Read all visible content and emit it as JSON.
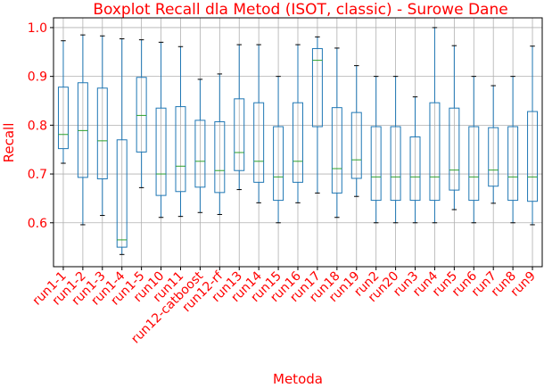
{
  "chart_data": {
    "type": "boxplot",
    "title": "Boxplot Recall dla Metod (ISOT, classic) - Surowe Dane",
    "xlabel": "Metoda",
    "ylabel": "Recall",
    "ylim": [
      0.51,
      1.02
    ],
    "yticks": [
      "0.6",
      "0.7",
      "0.8",
      "0.9",
      "1.0"
    ],
    "grid": true,
    "colors": {
      "text": "#ff0000",
      "box": "#1f77b4",
      "median": "#2ca02c",
      "whisker": "#1f77b4",
      "grid": "#b0b0b0"
    },
    "categories": [
      "run1-1",
      "run1-2",
      "run1-3",
      "run1-4",
      "run1-5",
      "run10",
      "run11",
      "run12-catboost",
      "run12-rf",
      "run13",
      "run14",
      "run15",
      "run16",
      "run17",
      "run18",
      "run19",
      "run2",
      "run20",
      "run3",
      "run4",
      "run5",
      "run6",
      "run7",
      "run8",
      "run9"
    ],
    "boxes": [
      {
        "min": 0.722,
        "q1": 0.752,
        "median": 0.781,
        "q3": 0.878,
        "max": 0.973
      },
      {
        "min": 0.596,
        "q1": 0.693,
        "median": 0.789,
        "q3": 0.887,
        "max": 0.985
      },
      {
        "min": 0.615,
        "q1": 0.69,
        "median": 0.768,
        "q3": 0.876,
        "max": 0.983
      },
      {
        "min": 0.535,
        "q1": 0.55,
        "median": 0.565,
        "q3": 0.77,
        "max": 0.977
      },
      {
        "min": 0.672,
        "q1": 0.745,
        "median": 0.82,
        "q3": 0.898,
        "max": 0.975
      },
      {
        "min": 0.611,
        "q1": 0.656,
        "median": 0.7,
        "q3": 0.835,
        "max": 0.97
      },
      {
        "min": 0.613,
        "q1": 0.664,
        "median": 0.716,
        "q3": 0.838,
        "max": 0.961
      },
      {
        "min": 0.621,
        "q1": 0.673,
        "median": 0.726,
        "q3": 0.81,
        "max": 0.894
      },
      {
        "min": 0.617,
        "q1": 0.662,
        "median": 0.707,
        "q3": 0.807,
        "max": 0.905
      },
      {
        "min": 0.668,
        "q1": 0.707,
        "median": 0.744,
        "q3": 0.854,
        "max": 0.965
      },
      {
        "min": 0.641,
        "q1": 0.683,
        "median": 0.726,
        "q3": 0.846,
        "max": 0.965
      },
      {
        "min": 0.6,
        "q1": 0.646,
        "median": 0.694,
        "q3": 0.797,
        "max": 0.9
      },
      {
        "min": 0.641,
        "q1": 0.683,
        "median": 0.726,
        "q3": 0.846,
        "max": 0.965
      },
      {
        "min": 0.661,
        "q1": 0.797,
        "median": 0.933,
        "q3": 0.957,
        "max": 0.981
      },
      {
        "min": 0.611,
        "q1": 0.661,
        "median": 0.711,
        "q3": 0.836,
        "max": 0.958
      },
      {
        "min": 0.654,
        "q1": 0.691,
        "median": 0.729,
        "q3": 0.826,
        "max": 0.922
      },
      {
        "min": 0.6,
        "q1": 0.646,
        "median": 0.694,
        "q3": 0.797,
        "max": 0.9
      },
      {
        "min": 0.6,
        "q1": 0.646,
        "median": 0.694,
        "q3": 0.797,
        "max": 0.9
      },
      {
        "min": 0.6,
        "q1": 0.646,
        "median": 0.694,
        "q3": 0.776,
        "max": 0.858
      },
      {
        "min": 0.6,
        "q1": 0.646,
        "median": 0.694,
        "q3": 0.846,
        "max": 1.0
      },
      {
        "min": 0.627,
        "q1": 0.667,
        "median": 0.708,
        "q3": 0.835,
        "max": 0.963
      },
      {
        "min": 0.6,
        "q1": 0.646,
        "median": 0.694,
        "q3": 0.797,
        "max": 0.9
      },
      {
        "min": 0.64,
        "q1": 0.675,
        "median": 0.708,
        "q3": 0.795,
        "max": 0.881
      },
      {
        "min": 0.6,
        "q1": 0.646,
        "median": 0.694,
        "q3": 0.797,
        "max": 0.9
      },
      {
        "min": 0.596,
        "q1": 0.644,
        "median": 0.694,
        "q3": 0.828,
        "max": 0.962
      }
    ]
  }
}
